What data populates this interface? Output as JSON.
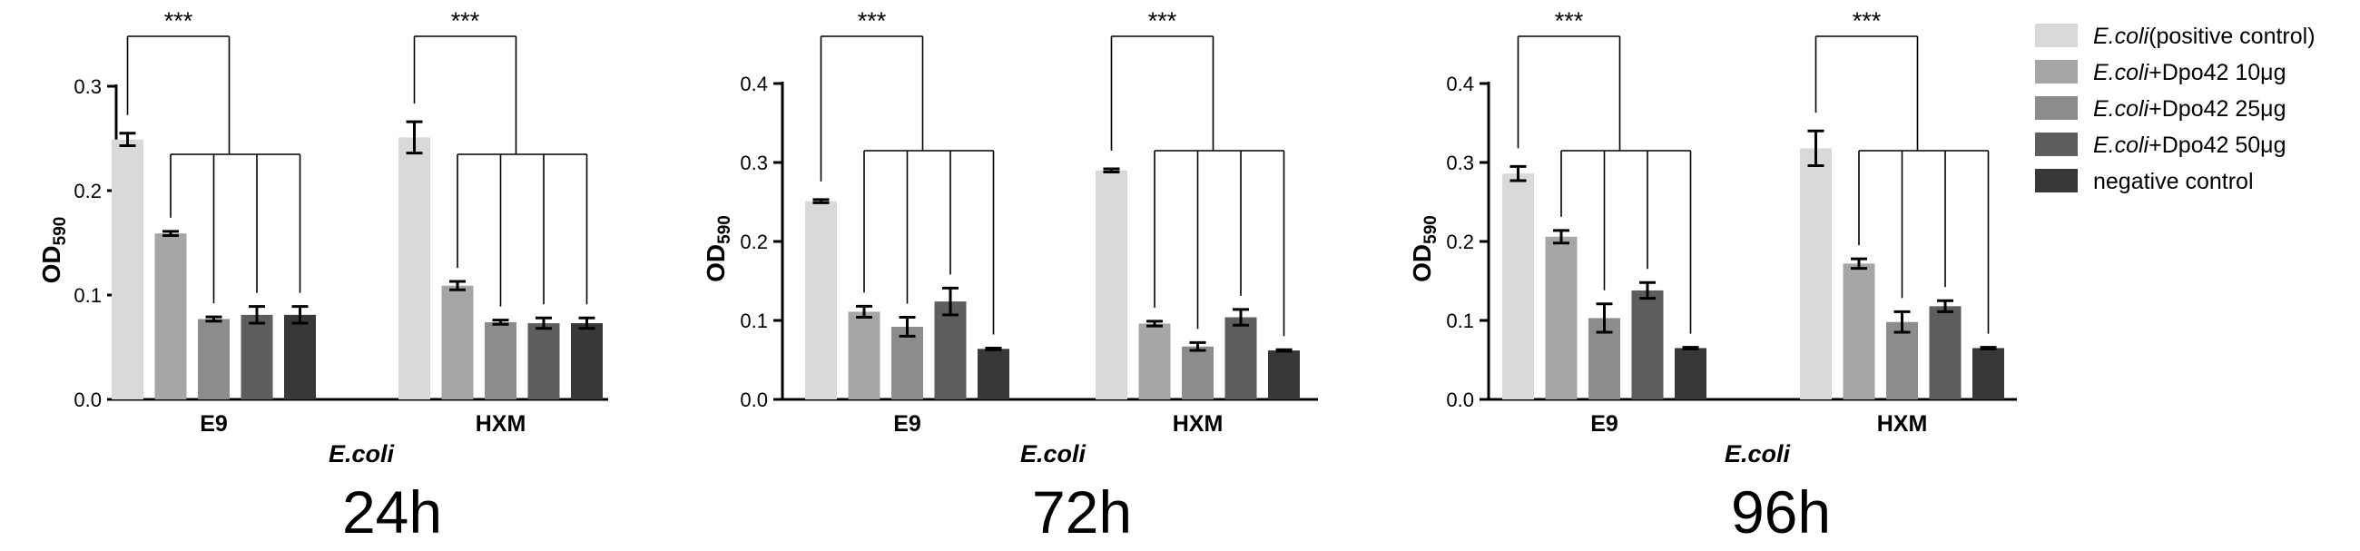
{
  "colors": {
    "series": [
      "#d9d9d9",
      "#a6a6a6",
      "#8c8c8c",
      "#5e5e5e",
      "#383838"
    ],
    "ink": "#000000"
  },
  "legend": {
    "position": "right",
    "entries": [
      {
        "italic": "E.coli",
        "rest": "(positive control)"
      },
      {
        "italic": "E.coli",
        "rest": "+Dpo42 10μg"
      },
      {
        "italic": "E.coli",
        "rest": "+Dpo42 25μg"
      },
      {
        "italic": "E.coli",
        "rest": "+Dpo42 50μg"
      },
      {
        "italic": "",
        "rest": "negative control"
      }
    ]
  },
  "chart_data": [
    {
      "type": "bar",
      "caption": "24h",
      "ylabel_main": "OD",
      "ylabel_sub": "590",
      "xlabel": "E.coli",
      "ylim": [
        0,
        0.3
      ],
      "yticks": [
        "0.0",
        "0.1",
        "0.2",
        "0.3"
      ],
      "categories": [
        "E9",
        "HXM"
      ],
      "significance": "***",
      "series": [
        {
          "name": "E.coli(positive control)",
          "values": [
            0.249,
            0.251
          ],
          "errors": [
            0.006,
            0.015
          ]
        },
        {
          "name": "E.coli+Dpo42 10μg",
          "values": [
            0.159,
            0.109
          ],
          "errors": [
            0.002,
            0.004
          ]
        },
        {
          "name": "E.coli+Dpo42 25μg",
          "values": [
            0.077,
            0.074
          ],
          "errors": [
            0.002,
            0.002
          ]
        },
        {
          "name": "E.coli+Dpo42 50μg",
          "values": [
            0.081,
            0.073
          ],
          "errors": [
            0.008,
            0.005
          ]
        },
        {
          "name": "negative control",
          "values": [
            0.081,
            0.073
          ],
          "errors": [
            0.008,
            0.005
          ]
        }
      ]
    },
    {
      "type": "bar",
      "caption": "72h",
      "ylabel_main": "OD",
      "ylabel_sub": "590",
      "xlabel": "E.coli",
      "ylim": [
        0,
        0.4
      ],
      "yticks": [
        "0.0",
        "0.1",
        "0.2",
        "0.3",
        "0.4"
      ],
      "categories": [
        "E9",
        "HXM"
      ],
      "significance": "***",
      "series": [
        {
          "name": "E.coli(positive control)",
          "values": [
            0.251,
            0.29
          ],
          "errors": [
            0.002,
            0.002
          ]
        },
        {
          "name": "E.coli+Dpo42 10μg",
          "values": [
            0.111,
            0.096
          ],
          "errors": [
            0.007,
            0.003
          ]
        },
        {
          "name": "E.coli+Dpo42 25μg",
          "values": [
            0.092,
            0.067
          ],
          "errors": [
            0.012,
            0.005
          ]
        },
        {
          "name": "E.coli+Dpo42 50μg",
          "values": [
            0.124,
            0.104
          ],
          "errors": [
            0.017,
            0.01
          ]
        },
        {
          "name": "negative control",
          "values": [
            0.064,
            0.062
          ],
          "errors": [
            0.001,
            0.001
          ]
        }
      ]
    },
    {
      "type": "bar",
      "caption": "96h",
      "ylabel_main": "OD",
      "ylabel_sub": "590",
      "xlabel": "E.coli",
      "ylim": [
        0,
        0.4
      ],
      "yticks": [
        "0.0",
        "0.1",
        "0.2",
        "0.3",
        "0.4"
      ],
      "categories": [
        "E9",
        "HXM"
      ],
      "significance": "***",
      "series": [
        {
          "name": "E.coli(positive control)",
          "values": [
            0.286,
            0.318
          ],
          "errors": [
            0.009,
            0.022
          ]
        },
        {
          "name": "E.coli+Dpo42 10μg",
          "values": [
            0.206,
            0.172
          ],
          "errors": [
            0.008,
            0.006
          ]
        },
        {
          "name": "E.coli+Dpo42 25μg",
          "values": [
            0.103,
            0.098
          ],
          "errors": [
            0.018,
            0.013
          ]
        },
        {
          "name": "E.coli+Dpo42 50μg",
          "values": [
            0.138,
            0.118
          ],
          "errors": [
            0.01,
            0.007
          ]
        },
        {
          "name": "negative control",
          "values": [
            0.065,
            0.065
          ],
          "errors": [
            0.001,
            0.001
          ]
        }
      ]
    }
  ]
}
